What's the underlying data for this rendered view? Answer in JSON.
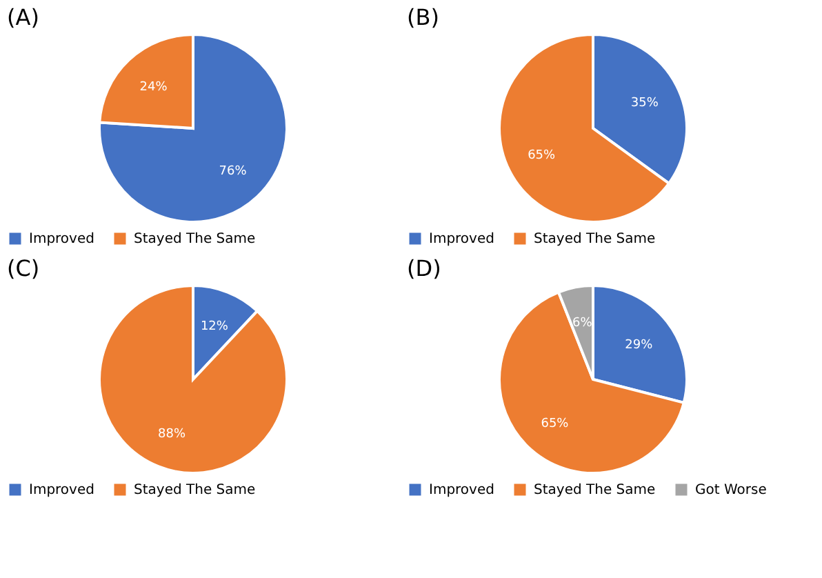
{
  "chart_data": [
    {
      "type": "pie",
      "title": "(A)",
      "categories": [
        "Improved",
        "Stayed The Same"
      ],
      "values": [
        76,
        24
      ],
      "colors": [
        "#4472c4",
        "#ed7d31"
      ],
      "value_labels": [
        "76%",
        "24%"
      ],
      "legend": "bottom"
    },
    {
      "type": "pie",
      "title": "(B)",
      "categories": [
        "Improved",
        "Stayed The Same"
      ],
      "values": [
        35,
        65
      ],
      "colors": [
        "#4472c4",
        "#ed7d31"
      ],
      "value_labels": [
        "35%",
        "65%"
      ],
      "legend": "bottom"
    },
    {
      "type": "pie",
      "title": "(C)",
      "categories": [
        "Improved",
        "Stayed The Same"
      ],
      "values": [
        12,
        88
      ],
      "colors": [
        "#4472c4",
        "#ed7d31"
      ],
      "value_labels": [
        "12%",
        "88%"
      ],
      "legend": "bottom"
    },
    {
      "type": "pie",
      "title": "(D)",
      "categories": [
        "Improved",
        "Stayed The Same",
        "Got Worse"
      ],
      "values": [
        29,
        65,
        6
      ],
      "colors": [
        "#4472c4",
        "#ed7d31",
        "#a5a5a5"
      ],
      "value_labels": [
        "29%",
        "65%",
        "6%"
      ],
      "legend": "bottom"
    }
  ]
}
